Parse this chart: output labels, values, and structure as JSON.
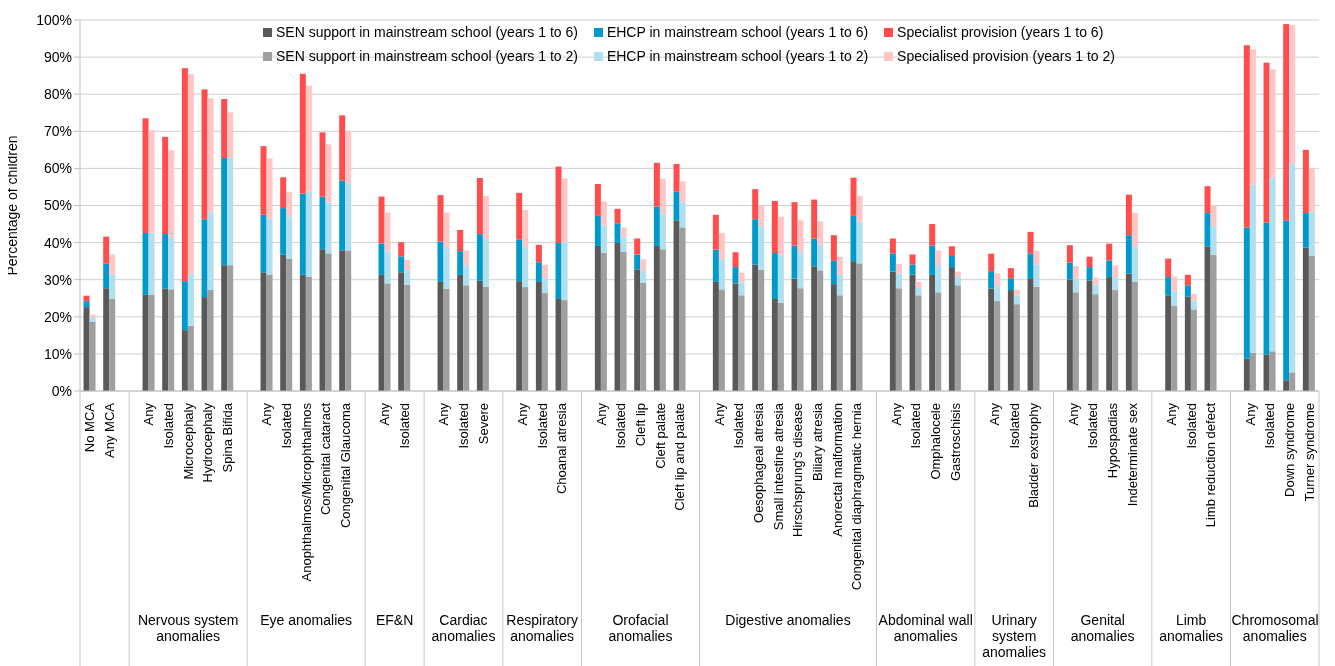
{
  "chart_data": {
    "type": "bar",
    "ylabel": "Percentage of children",
    "categories": [
      "No MCA",
      "Any MCA",
      null,
      "Any",
      "Isolated",
      "Microcephaly",
      "Hydrocephaly",
      "Spina Bifida",
      null,
      "Any",
      "Isolated",
      "Anophthalmos/Microphthalmos",
      "Congenital cataract",
      "Congenital Glaucoma",
      null,
      "Any",
      "Isolated",
      null,
      "Any",
      "Isolated",
      "Severe",
      null,
      "Any",
      "Isolated",
      "Choanal atresia",
      null,
      "Any",
      "Isolated",
      "Cleft lip",
      "Cleft palate",
      "Cleft lip and palate",
      null,
      "Any",
      "Isolated",
      "Oesophageal atresia",
      "Small intestine atresia",
      "Hirschsprung's disease",
      "Biliary atresia",
      "Anorectal malformation",
      "Congenital diaphragmatic hernia",
      null,
      "Any",
      "Isolated",
      "Omphalocele",
      "Gastroschisis",
      null,
      "Any",
      "Isolated",
      "Bladder exstrophy",
      null,
      "Any",
      "Isolated",
      "Hypospadias",
      "Indeterminate sex",
      null,
      "Any",
      "Isolated",
      "Limb reduction defect",
      null,
      "Any",
      "Isolated",
      "Down syndrome",
      "Turner syndrome"
    ],
    "annotations": [
      "Nervous system anomalies",
      "Eye anomalies",
      "EF&N",
      "Cardiac anomalies",
      "Respiratory anomalies",
      "Orofacial anomalies",
      "Digestive anomalies",
      "Abdominal wall anomalies",
      "Urinary system anomalies",
      "Genital anomalies",
      "Limb anomalies",
      "Chromosomal anomalies"
    ],
    "series": [
      {
        "name": "SEN support in mainstream school (years 1 to 6)",
        "color": "#595959",
        "values": [
          22.6,
          27.7,
          null,
          25.9,
          27.6,
          16.4,
          25.3,
          33.9,
          null,
          32.0,
          36.7,
          31.3,
          38.2,
          37.9,
          null,
          31.3,
          32.0,
          null,
          29.4,
          31.3,
          29.7,
          null,
          29.6,
          29.4,
          24.8,
          null,
          39.1,
          39.9,
          32.8,
          39.1,
          46.0,
          null,
          29.4,
          29.0,
          34.1,
          24.8,
          30.3,
          33.6,
          28.8,
          35.0,
          null,
          32.2,
          31.4,
          31.3,
          33.4,
          null,
          27.6,
          27.2,
          30.4,
          null,
          30.0,
          29.8,
          30.7,
          31.6,
          null,
          25.8,
          25.4,
          39.0,
          null,
          8.7,
          9.8,
          2.9,
          38.7
        ],
        "base": [
          0,
          0,
          null,
          0,
          0,
          0,
          0,
          0,
          null,
          0,
          0,
          0,
          0,
          0,
          null,
          0,
          0,
          null,
          0,
          0,
          0,
          null,
          0,
          0,
          0,
          null,
          0,
          0,
          0,
          0,
          0,
          null,
          0,
          0,
          0,
          0,
          0,
          0,
          0,
          0,
          null,
          0,
          0,
          0,
          0,
          null,
          0,
          0,
          0,
          null,
          0,
          0,
          0,
          0,
          null,
          0,
          0,
          0,
          null,
          0,
          0,
          0,
          0
        ]
      },
      {
        "name": "EHCP in mainstream school (years 1 to 6)",
        "color": "#0099cc",
        "values": [
          1.6,
          6.6,
          null,
          16.7,
          14.7,
          13.2,
          21.0,
          28.9,
          null,
          15.5,
          12.6,
          21.9,
          14.2,
          18.8,
          null,
          8.5,
          4.3,
          null,
          10.9,
          6.4,
          12.6,
          null,
          11.3,
          5.3,
          15.1,
          null,
          8.1,
          5.3,
          4.0,
          10.6,
          7.7,
          null,
          8.7,
          4.4,
          12.2,
          12.4,
          8.9,
          7.5,
          6.3,
          12.2,
          null,
          4.9,
          2.7,
          7.9,
          3.0,
          null,
          4.7,
          3.2,
          6.7,
          null,
          4.6,
          3.6,
          4.5,
          10.4,
          null,
          4.9,
          3.1,
          9.0,
          null,
          35.4,
          35.6,
          43.0,
          9.3
        ],
        "base": [
          22.6,
          27.7,
          null,
          25.9,
          27.6,
          16.4,
          25.3,
          33.9,
          null,
          32.0,
          36.7,
          31.3,
          38.2,
          37.9,
          null,
          31.3,
          32.0,
          null,
          29.4,
          31.3,
          29.7,
          null,
          29.6,
          29.4,
          24.8,
          null,
          39.1,
          39.9,
          32.8,
          39.1,
          46.0,
          null,
          29.4,
          29.0,
          34.1,
          24.8,
          30.3,
          33.6,
          28.8,
          35.0,
          null,
          32.2,
          31.4,
          31.3,
          33.4,
          null,
          27.6,
          27.2,
          30.4,
          null,
          30.0,
          29.8,
          30.7,
          31.6,
          null,
          25.8,
          25.4,
          39.0,
          null,
          8.7,
          9.8,
          2.9,
          38.7
        ]
      },
      {
        "name": "Specialist provision (years 1 to 6)",
        "color": "#ff4d4d",
        "values": [
          1.5,
          7.3,
          null,
          30.9,
          26.2,
          57.4,
          35.0,
          15.9,
          null,
          18.5,
          8.3,
          32.3,
          17.3,
          17.6,
          null,
          12.6,
          3.8,
          null,
          12.5,
          5.7,
          15.1,
          null,
          12.5,
          4.7,
          20.6,
          null,
          8.6,
          3.9,
          4.3,
          11.8,
          7.5,
          null,
          9.4,
          4.0,
          8.1,
          14.0,
          11.7,
          10.5,
          6.9,
          10.3,
          null,
          4.0,
          2.7,
          5.8,
          2.6,
          null,
          4.7,
          2.7,
          5.8,
          null,
          4.7,
          2.8,
          4.5,
          10.9,
          null,
          5.0,
          2.8,
          7.2,
          null,
          49.1,
          43.1,
          53.0,
          17.0
        ],
        "base": [
          24.2,
          34.3,
          null,
          42.6,
          42.3,
          29.6,
          46.3,
          62.8,
          null,
          47.5,
          49.3,
          53.2,
          52.4,
          56.7,
          null,
          39.8,
          36.3,
          null,
          40.3,
          37.7,
          42.3,
          null,
          40.9,
          34.7,
          39.9,
          null,
          47.2,
          45.2,
          36.8,
          49.7,
          53.7,
          null,
          38.1,
          33.4,
          46.3,
          37.2,
          39.2,
          41.1,
          35.1,
          47.2,
          null,
          37.1,
          34.1,
          39.2,
          36.4,
          null,
          32.3,
          30.4,
          37.1,
          null,
          34.6,
          33.4,
          35.2,
          42.0,
          null,
          30.7,
          28.5,
          48.0,
          null,
          44.1,
          45.4,
          45.9,
          48.0
        ]
      },
      {
        "name": "SEN support in mainstream school (years 1 to 2)",
        "color": "#9f9f9f",
        "values": [
          18.6,
          24.9,
          null,
          26.0,
          27.4,
          17.6,
          27.3,
          33.9,
          null,
          31.4,
          35.7,
          30.8,
          37.1,
          37.9,
          null,
          29.0,
          28.6,
          null,
          27.5,
          28.5,
          28.1,
          null,
          28.0,
          26.4,
          24.5,
          null,
          37.3,
          37.6,
          29.2,
          38.2,
          44.1,
          null,
          27.4,
          25.8,
          32.7,
          23.8,
          27.7,
          32.5,
          25.8,
          34.4,
          null,
          27.7,
          25.8,
          26.6,
          28.5,
          null,
          24.3,
          23.4,
          28.1,
          null,
          26.6,
          26.1,
          27.2,
          29.4,
          null,
          22.9,
          22.0,
          36.7,
          null,
          10.3,
          10.7,
          5.0,
          36.5
        ],
        "base": [
          0,
          0,
          null,
          0,
          0,
          0,
          0,
          0,
          null,
          0,
          0,
          0,
          0,
          0,
          null,
          0,
          0,
          null,
          0,
          0,
          0,
          null,
          0,
          0,
          0,
          null,
          0,
          0,
          0,
          0,
          0,
          null,
          0,
          0,
          0,
          0,
          0,
          0,
          0,
          0,
          null,
          0,
          0,
          0,
          0,
          null,
          0,
          0,
          0,
          null,
          0,
          0,
          0,
          0,
          null,
          0,
          0,
          0,
          null,
          0,
          0,
          0,
          0
        ]
      },
      {
        "name": "EHCP in mainstream school (years 1 to 2)",
        "color": "#b0dff0",
        "values": [
          1.3,
          6.4,
          null,
          16.7,
          14.2,
          14.0,
          20.9,
          28.9,
          null,
          15.1,
          11.4,
          22.9,
          13.7,
          18.2,
          null,
          8.6,
          4.0,
          null,
          11.0,
          5.4,
          13.1,
          null,
          11.0,
          4.1,
          15.7,
          null,
          7.3,
          4.0,
          3.3,
          9.6,
          6.7,
          null,
          8.1,
          3.4,
          11.7,
          12.8,
          9.7,
          6.9,
          5.5,
          11.3,
          null,
          4.0,
          2.0,
          7.1,
          2.4,
          null,
          4.0,
          2.4,
          6.0,
          null,
          3.8,
          2.6,
          3.5,
          9.5,
          null,
          4.0,
          2.4,
          7.8,
          null,
          45.3,
          46.8,
          56.4,
          11.8
        ],
        "base": [
          18.6,
          24.9,
          null,
          26.0,
          27.4,
          17.6,
          27.3,
          33.9,
          null,
          31.4,
          35.7,
          30.8,
          37.1,
          37.9,
          null,
          29.0,
          28.6,
          null,
          27.5,
          28.5,
          28.1,
          null,
          28.0,
          26.4,
          24.5,
          null,
          37.3,
          37.6,
          29.2,
          38.2,
          44.1,
          null,
          27.4,
          25.8,
          32.7,
          23.8,
          27.7,
          32.5,
          25.8,
          34.4,
          null,
          27.7,
          25.8,
          26.6,
          28.5,
          null,
          24.3,
          23.4,
          28.1,
          null,
          26.6,
          26.1,
          27.2,
          29.4,
          null,
          22.9,
          22.0,
          36.7,
          null,
          10.3,
          10.7,
          5.0,
          36.5
        ]
      },
      {
        "name": "Specialised provision (years 1 to 2)",
        "color": "#ffc6c6",
        "values": [
          0.7,
          5.5,
          null,
          27.6,
          23.3,
          53.8,
          30.7,
          12.3,
          null,
          16.2,
          6.6,
          28.6,
          15.7,
          14.0,
          null,
          10.5,
          2.7,
          null,
          9.6,
          4.0,
          11.4,
          null,
          9.8,
          3.5,
          17.1,
          null,
          6.5,
          2.5,
          3.0,
          9.4,
          5.7,
          null,
          7.1,
          2.7,
          5.7,
          10.4,
          8.6,
          6.3,
          4.9,
          6.9,
          null,
          2.6,
          1.6,
          4.2,
          1.3,
          null,
          3.4,
          1.5,
          3.7,
          null,
          3.3,
          1.9,
          3.2,
          9.1,
          null,
          4.0,
          1.8,
          5.5,
          null,
          36.5,
          29.2,
          37.3,
          11.7
        ],
        "base": [
          19.9,
          31.3,
          null,
          42.7,
          41.6,
          31.6,
          48.2,
          62.8,
          null,
          46.5,
          47.1,
          53.7,
          50.8,
          56.1,
          null,
          37.6,
          32.6,
          null,
          38.5,
          33.9,
          41.2,
          null,
          39.0,
          30.5,
          40.2,
          null,
          44.6,
          41.6,
          32.5,
          47.8,
          50.8,
          null,
          35.5,
          29.2,
          44.4,
          36.6,
          37.4,
          39.4,
          31.3,
          45.7,
          null,
          31.7,
          27.8,
          33.7,
          30.9,
          null,
          28.3,
          25.8,
          34.1,
          null,
          30.4,
          28.7,
          30.7,
          38.9,
          null,
          26.9,
          24.4,
          44.5,
          null,
          55.6,
          57.5,
          61.4,
          48.3
        ]
      }
    ],
    "ylim": [
      0,
      100
    ],
    "yticks": [
      {
        "value": 0,
        "label": "0%"
      },
      {
        "value": 10,
        "label": "10%"
      },
      {
        "value": 20,
        "label": "20%"
      },
      {
        "value": 30,
        "label": "30%"
      },
      {
        "value": 40,
        "label": "40%"
      },
      {
        "value": 50,
        "label": "50%"
      },
      {
        "value": 60,
        "label": "60%"
      },
      {
        "value": 70,
        "label": "70%"
      },
      {
        "value": 80,
        "label": "80%"
      },
      {
        "value": 90,
        "label": "90%"
      },
      {
        "value": 100,
        "label": "100%"
      }
    ],
    "grid": "y",
    "legend": "top"
  }
}
